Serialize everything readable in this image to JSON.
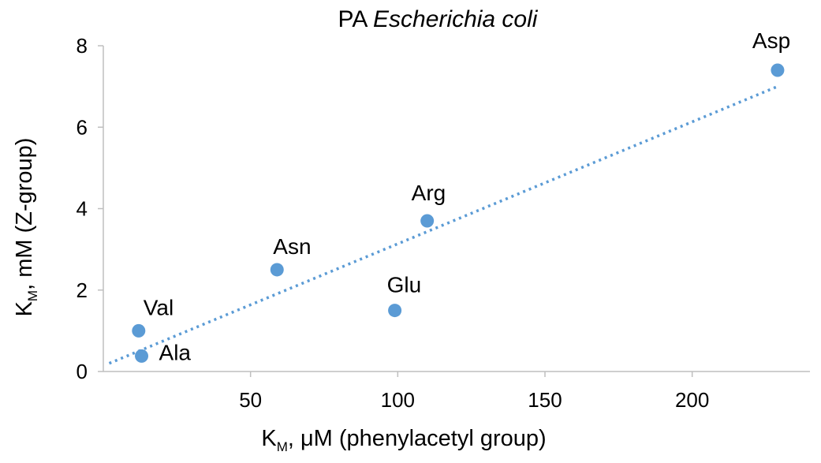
{
  "chart_data": {
    "type": "scatter",
    "title": {
      "prefix": "PA ",
      "italic": "Escherichia coli"
    },
    "xlabel": {
      "main": "K",
      "sub": "M",
      "rest": ", μM (phenylacetyl group)"
    },
    "ylabel": {
      "main": "K",
      "sub": "M",
      "rest": ", mM (Z-group)"
    },
    "xlim": [
      0,
      240
    ],
    "ylim": [
      0,
      8
    ],
    "xticks": [
      50,
      100,
      150,
      200
    ],
    "yticks": [
      0,
      2,
      4,
      6,
      8
    ],
    "grid": false,
    "points": [
      {
        "label": "Val",
        "x": 12,
        "y": 1.0
      },
      {
        "label": "Ala",
        "x": 13,
        "y": 0.38
      },
      {
        "label": "Asn",
        "x": 59,
        "y": 2.5
      },
      {
        "label": "Glu",
        "x": 99,
        "y": 1.5
      },
      {
        "label": "Arg",
        "x": 110,
        "y": 3.7
      },
      {
        "label": "Asp",
        "x": 229,
        "y": 7.4
      }
    ],
    "trendline": {
      "style": "dotted",
      "x": [
        2,
        229
      ],
      "y": [
        0.2,
        7.0
      ]
    },
    "series_color": "#5b9bd5"
  }
}
